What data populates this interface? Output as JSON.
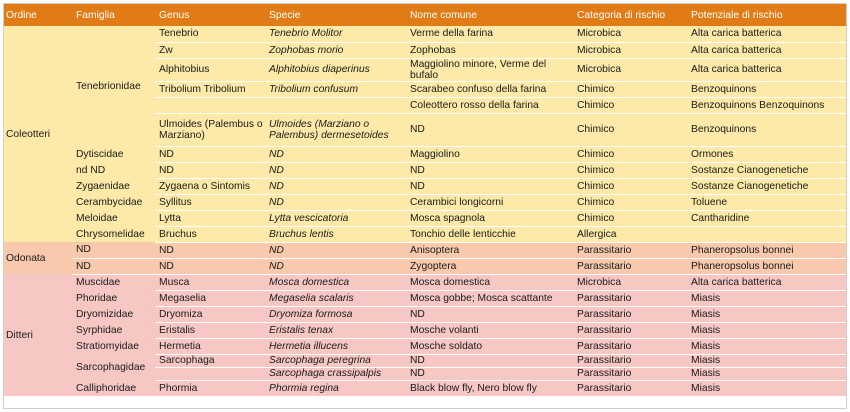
{
  "headers": {
    "ordine": "Ordine",
    "famiglia": "Famiglia",
    "genus": "Genus",
    "specie": "Specie",
    "nome_comune": "Nome comune",
    "categoria": "Categoria di rischio",
    "potenziale": "Potenziale di rischio"
  },
  "orders": [
    {
      "ordine": "Coleotteri",
      "families": [
        {
          "famiglia": "Tenebrionidae",
          "rows": [
            {
              "genus": "Tenebrio",
              "specie": "Tenebrio Molitor",
              "nome_comune": "Verme della farina",
              "categoria": "Microbica",
              "potenziale": "Alta carica batterica"
            },
            {
              "genus": "Zw",
              "specie": "Zophobas morio",
              "nome_comune": "Zophobas",
              "categoria": "Microbica",
              "potenziale": "Alta carica batterica"
            },
            {
              "genus": "Alphitobius",
              "specie": "Alphitobius diaperinus",
              "nome_comune": "Maggiolino minore, Verme del bufalo",
              "categoria": "Microbica",
              "potenziale": "Alta carica batterica"
            },
            {
              "genus": "Tribolium Tribolium",
              "specie": "Tribolium confusum",
              "nome_comune": "Scarabeo confuso della farina",
              "categoria": "Chimico",
              "potenziale": "Benzoquinons"
            },
            {
              "genus": "",
              "specie": "",
              "nome_comune": "Coleottero rosso della farina",
              "categoria": "Chimico",
              "potenziale": "Benzoquinons Benzoquinons"
            },
            {
              "genus": "Ulmoides (Palembus o Marziano)",
              "specie": "Ulmoides (Marziano o Palembus) dermesetoides",
              "nome_comune": "ND",
              "categoria": "Chimico",
              "potenziale": "Benzoquinons"
            }
          ]
        },
        {
          "famiglia": "Dytiscidae",
          "rows": [
            {
              "genus": "ND",
              "specie": "ND",
              "nome_comune": "Maggiolino",
              "categoria": "Chimico",
              "potenziale": "Ormones"
            }
          ]
        },
        {
          "famiglia": "nd ND",
          "rows": [
            {
              "genus": "ND",
              "specie": "ND",
              "nome_comune": "ND",
              "categoria": "Chimico",
              "potenziale": "Sostanze Cianogenetiche"
            }
          ]
        },
        {
          "famiglia": "Zygaenidae",
          "rows": [
            {
              "genus": "Zygaena o Sintomis",
              "specie": "ND",
              "nome_comune": "ND",
              "categoria": "Chimico",
              "potenziale": "Sostanze Cianogenetiche"
            }
          ]
        },
        {
          "famiglia": "Cerambycidae",
          "rows": [
            {
              "genus": "Syllitus",
              "specie": "ND",
              "nome_comune": "Cerambici longicorni",
              "categoria": "Chimico",
              "potenziale": "Toluene"
            }
          ]
        },
        {
          "famiglia": "Meloidae",
          "rows": [
            {
              "genus": "Lytta",
              "specie": "Lytta vescicatoria",
              "nome_comune": "Mosca spagnola",
              "categoria": "Chimico",
              "potenziale": "Cantharidine"
            }
          ]
        },
        {
          "famiglia": "Chrysomelidae",
          "rows": [
            {
              "genus": "Bruchus",
              "specie": "Bruchus lentis",
              "nome_comune": "Tonchio delle lenticchie",
              "categoria": "Allergica",
              "potenziale": ""
            }
          ]
        }
      ]
    },
    {
      "ordine": "Odonata",
      "families": [
        {
          "famiglia": "ND",
          "rows": [
            {
              "genus": "ND",
              "specie": "ND",
              "nome_comune": "Anisoptera",
              "categoria": "Parassitario",
              "potenziale": "Phaneropsolus bonnei"
            }
          ]
        },
        {
          "famiglia": "ND",
          "rows": [
            {
              "genus": "ND",
              "specie": "ND",
              "nome_comune": "Zygoptera",
              "categoria": "Parassitario",
              "potenziale": "Phaneropsolus bonnei"
            }
          ]
        }
      ]
    },
    {
      "ordine": "Ditteri",
      "families": [
        {
          "famiglia": "Muscidae",
          "rows": [
            {
              "genus": "Musca",
              "specie": "Mosca domestica",
              "nome_comune": "Mosca domestica",
              "categoria": "Microbica",
              "potenziale": "Alta carica batterica"
            }
          ]
        },
        {
          "famiglia": "Phoridae",
          "rows": [
            {
              "genus": "Megaselia",
              "specie": "Megaselia scalaris",
              "nome_comune": "Mosca gobbe; Mosca scattante",
              "categoria": "Parassitario",
              "potenziale": "Miasis"
            }
          ]
        },
        {
          "famiglia": "Dryomizidae",
          "rows": [
            {
              "genus": "Dryomiza",
              "specie": "Dryomiza formosa",
              "nome_comune": "ND",
              "categoria": "Parassitario",
              "potenziale": "Miasis"
            }
          ]
        },
        {
          "famiglia": "Syrphidae",
          "rows": [
            {
              "genus": "Eristalis",
              "specie": "Eristalis tenax",
              "nome_comune": "Mosche volanti",
              "categoria": "Parassitario",
              "potenziale": "Miasis"
            }
          ]
        },
        {
          "famiglia": "Stratiomyidae",
          "rows": [
            {
              "genus": "Hermetia",
              "specie": "Hermetia illucens",
              "nome_comune": "Mosche soldato",
              "categoria": "Parassitario",
              "potenziale": "Miasis"
            }
          ]
        },
        {
          "famiglia": "Sarcophagidae",
          "rows": [
            {
              "genus": "Sarcophaga",
              "specie": "Sarcophaga peregrina",
              "nome_comune": "ND",
              "categoria": "Parassitario",
              "potenziale": "Miasis"
            },
            {
              "genus": "",
              "specie": "Sarcophaga crassipalpis",
              "nome_comune": "ND",
              "categoria": "Parassitario",
              "potenziale": "Miasis"
            }
          ]
        },
        {
          "famiglia": "Calliphoridae",
          "rows": [
            {
              "genus": "Phormia",
              "specie": "Phormia regina",
              "nome_comune": "Black blow fly, Nero blow fly",
              "categoria": "Parassitario",
              "potenziale": "Miasis"
            }
          ]
        }
      ]
    }
  ]
}
